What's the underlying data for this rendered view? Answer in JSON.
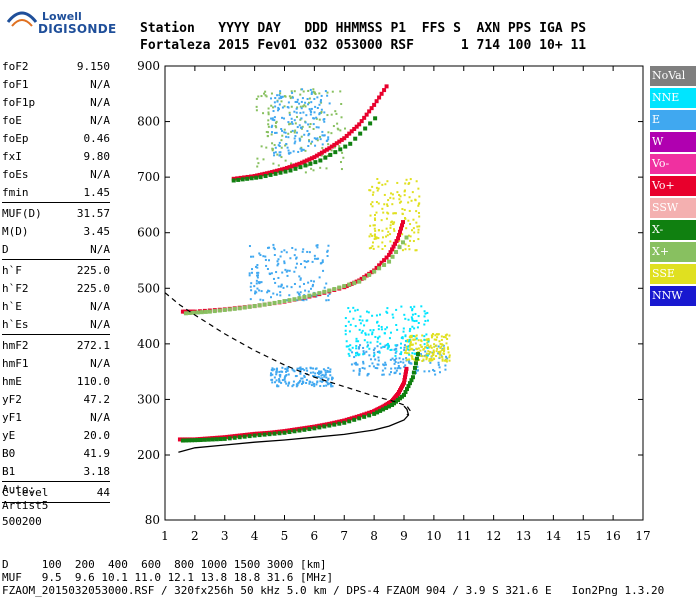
{
  "logo": {
    "top": "Lowell",
    "bottom": "DIGISONDE"
  },
  "header": {
    "labels": "Station   YYYY DAY   DDD HHMMSS P1  FFS S  AXN PPS IGA PS",
    "values": "Fortaleza 2015 Fev01 032 053000 RSF      1 714 100 10+ 11"
  },
  "params": [
    [
      [
        "foF2",
        "9.150"
      ],
      [
        "foF1",
        "N/A"
      ],
      [
        "foF1p",
        "N/A"
      ],
      [
        "foE",
        "N/A"
      ],
      [
        "foEp",
        "0.46"
      ],
      [
        "fxI",
        "9.80"
      ],
      [
        "foEs",
        "N/A"
      ],
      [
        "fmin",
        "1.45"
      ]
    ],
    [
      [
        "MUF(D)",
        "31.57"
      ],
      [
        "M(D)",
        "3.45"
      ],
      [
        "D",
        "N/A"
      ]
    ],
    [
      [
        "h`F",
        "225.0"
      ],
      [
        "h`F2",
        "225.0"
      ],
      [
        "h`E",
        "N/A"
      ],
      [
        "h`Es",
        "N/A"
      ]
    ],
    [
      [
        "hmF2",
        "272.1"
      ],
      [
        "hmF1",
        "N/A"
      ],
      [
        "hmE",
        "110.0"
      ],
      [
        "yF2",
        "47.2"
      ],
      [
        "yF1",
        "N/A"
      ],
      [
        "yE",
        "20.0"
      ],
      [
        "B0",
        "41.9"
      ],
      [
        "B1",
        "3.18"
      ]
    ],
    [
      [
        "C-level",
        "44"
      ]
    ]
  ],
  "auto": [
    "Auto:",
    "Artist5",
    "500200"
  ],
  "footer": {
    "d_row": "D     100  200  400  600  800 1000 1500 3000 [km]",
    "muf_row": "MUF   9.5  9.6 10.1 11.0 12.1 13.8 18.8 31.6 [MHz]",
    "info_row": "FZAOM_2015032053000.RSF / 320fx256h 50 kHz 5.0 km / DPS-4 FZAOM 904 / 3.9 S 321.6 E   Ion2Png 1.3.20"
  },
  "legend": [
    {
      "label": "NoVal",
      "color": "#7f7f7f"
    },
    {
      "label": "NNE",
      "color": "#00e5ff"
    },
    {
      "label": "E",
      "color": "#40a8f0"
    },
    {
      "label": "W",
      "color": "#b000b0"
    },
    {
      "label": "Vo-",
      "color": "#f030a0"
    },
    {
      "label": "Vo+",
      "color": "#e8002c"
    },
    {
      "label": "SSW",
      "color": "#f4b0b0"
    },
    {
      "label": "X-",
      "color": "#108010"
    },
    {
      "label": "X+",
      "color": "#88c060"
    },
    {
      "label": "SSE",
      "color": "#e0e020"
    },
    {
      "label": "NNW",
      "color": "#1818d0"
    }
  ],
  "chart_data": {
    "type": "scatter",
    "xlim": [
      1,
      17
    ],
    "ylim": [
      80,
      900
    ],
    "x_ticks": [
      1,
      2,
      3,
      4,
      5,
      6,
      7,
      8,
      9,
      10,
      11,
      12,
      13,
      14,
      15,
      16,
      17
    ],
    "y_ticks": [
      80,
      200,
      300,
      400,
      500,
      600,
      700,
      800,
      900
    ],
    "grid": false,
    "traces": [
      {
        "name": "Vo+",
        "color": "#e8002c",
        "points": [
          [
            1.5,
            228
          ],
          [
            2.0,
            228
          ],
          [
            2.5,
            230
          ],
          [
            3.0,
            232
          ],
          [
            3.5,
            235
          ],
          [
            4.0,
            238
          ],
          [
            4.5,
            240
          ],
          [
            5.0,
            243
          ],
          [
            5.5,
            247
          ],
          [
            6.0,
            251
          ],
          [
            6.5,
            256
          ],
          [
            7.0,
            262
          ],
          [
            7.5,
            270
          ],
          [
            8.0,
            279
          ],
          [
            8.3,
            287
          ],
          [
            8.6,
            297
          ],
          [
            8.8,
            310
          ],
          [
            9.0,
            330
          ],
          [
            9.1,
            360
          ]
        ]
      },
      {
        "name": "X-",
        "color": "#108010",
        "points": [
          [
            1.6,
            226
          ],
          [
            2.2,
            227
          ],
          [
            3.0,
            229
          ],
          [
            4.0,
            235
          ],
          [
            5.0,
            240
          ],
          [
            6.0,
            248
          ],
          [
            7.0,
            258
          ],
          [
            8.0,
            274
          ],
          [
            8.6,
            290
          ],
          [
            9.0,
            308
          ],
          [
            9.3,
            340
          ],
          [
            9.5,
            390
          ]
        ]
      },
      {
        "name": "Vo+",
        "color": "#e8002c",
        "points": [
          [
            1.6,
            458
          ],
          [
            2.0,
            458
          ],
          [
            3.0,
            462
          ],
          [
            4.0,
            468
          ],
          [
            5.0,
            476
          ],
          [
            6.0,
            487
          ],
          [
            7.0,
            502
          ],
          [
            7.5,
            514
          ],
          [
            8.0,
            532
          ],
          [
            8.5,
            560
          ],
          [
            8.8,
            590
          ],
          [
            9.0,
            625
          ]
        ]
      },
      {
        "name": "X+",
        "color": "#88c060",
        "points": [
          [
            1.7,
            455
          ],
          [
            2.5,
            458
          ],
          [
            3.5,
            464
          ],
          [
            4.5,
            472
          ],
          [
            5.5,
            482
          ],
          [
            6.5,
            496
          ],
          [
            7.5,
            512
          ],
          [
            8.5,
            548
          ],
          [
            9.2,
            600
          ]
        ]
      },
      {
        "name": "Vo+",
        "color": "#e8002c",
        "points": [
          [
            3.3,
            697
          ],
          [
            4.0,
            702
          ],
          [
            4.5,
            708
          ],
          [
            5.0,
            715
          ],
          [
            5.5,
            724
          ],
          [
            6.0,
            736
          ],
          [
            6.5,
            752
          ],
          [
            7.0,
            770
          ],
          [
            7.5,
            795
          ],
          [
            8.0,
            830
          ],
          [
            8.5,
            870
          ]
        ]
      },
      {
        "name": "X-",
        "color": "#108010",
        "points": [
          [
            3.3,
            694
          ],
          [
            4.2,
            700
          ],
          [
            5.2,
            712
          ],
          [
            6.2,
            730
          ],
          [
            7.2,
            760
          ],
          [
            8.2,
            815
          ]
        ]
      }
    ],
    "solid_profile": [
      [
        1.45,
        205
      ],
      [
        2.0,
        213
      ],
      [
        3.0,
        218
      ],
      [
        4.0,
        223
      ],
      [
        5.0,
        227
      ],
      [
        6.0,
        232
      ],
      [
        7.0,
        237
      ],
      [
        8.0,
        245
      ],
      [
        8.5,
        252
      ],
      [
        9.0,
        263
      ],
      [
        9.15,
        272
      ],
      [
        9.1,
        282
      ],
      [
        9.0,
        288
      ]
    ],
    "dashed_profile": [
      [
        1.0,
        492
      ],
      [
        1.5,
        470
      ],
      [
        2.0,
        452
      ],
      [
        2.5,
        435
      ],
      [
        3.0,
        418
      ],
      [
        4.0,
        388
      ],
      [
        5.0,
        362
      ],
      [
        6.0,
        340
      ],
      [
        7.0,
        323
      ],
      [
        8.0,
        306
      ],
      [
        8.7,
        296
      ],
      [
        9.1,
        288
      ],
      [
        9.2,
        280
      ],
      [
        9.1,
        272
      ]
    ],
    "spread": [
      {
        "color": "#40a8f0",
        "x": [
          7.2,
          10.5
        ],
        "y": [
          345,
          400
        ]
      },
      {
        "color": "#40a8f0",
        "x": [
          3.8,
          6.5
        ],
        "y": [
          480,
          580
        ]
      },
      {
        "color": "#40a8f0",
        "x": [
          4.5,
          6.6
        ],
        "y": [
          325,
          360
        ]
      },
      {
        "color": "#e0e020",
        "x": [
          7.8,
          9.5
        ],
        "y": [
          570,
          700
        ]
      },
      {
        "color": "#e0e020",
        "x": [
          9.0,
          10.5
        ],
        "y": [
          370,
          420
        ]
      },
      {
        "color": "#00e5ff",
        "x": [
          7.0,
          9.8
        ],
        "y": [
          380,
          470
        ]
      },
      {
        "color": "#88c060",
        "x": [
          4.0,
          7.0
        ],
        "y": [
          710,
          860
        ]
      },
      {
        "color": "#40a8f0",
        "x": [
          4.5,
          6.5
        ],
        "y": [
          740,
          860
        ]
      }
    ]
  }
}
